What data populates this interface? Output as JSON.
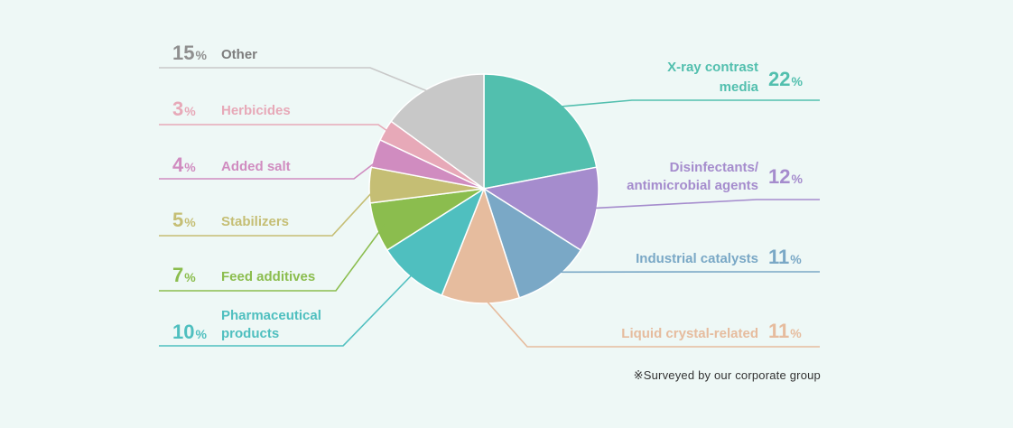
{
  "chart_data": {
    "type": "pie",
    "series": [
      {
        "name": "X-ray contrast media",
        "label_lines": [
          "X-ray contrast",
          "media"
        ],
        "value": 22,
        "color": "#52bfae",
        "side": "right"
      },
      {
        "name": "Disinfectants/ antimicrobial agents",
        "label_lines": [
          "Disinfectants/",
          "antimicrobial agents"
        ],
        "value": 12,
        "color": "#a58ccd",
        "side": "right"
      },
      {
        "name": "Industrial catalysts",
        "label_lines": [
          "Industrial catalysts"
        ],
        "value": 11,
        "color": "#7aa8c6",
        "side": "right"
      },
      {
        "name": "Liquid crystal-related",
        "label_lines": [
          "Liquid crystal-related"
        ],
        "value": 11,
        "color": "#e6bc9e",
        "side": "right"
      },
      {
        "name": "Pharmaceutical products",
        "label_lines": [
          "Pharmaceutical",
          "products"
        ],
        "value": 10,
        "color": "#4fbfbf",
        "side": "left"
      },
      {
        "name": "Feed additives",
        "label_lines": [
          "Feed additives"
        ],
        "value": 7,
        "color": "#8bbd4e",
        "side": "left"
      },
      {
        "name": "Stabilizers",
        "label_lines": [
          "Stabilizers"
        ],
        "value": 5,
        "color": "#c5be74",
        "side": "left"
      },
      {
        "name": "Added salt",
        "label_lines": [
          "Added salt"
        ],
        "value": 4,
        "color": "#d08cc0",
        "side": "left"
      },
      {
        "name": "Herbicides",
        "label_lines": [
          "Herbicides"
        ],
        "value": 3,
        "color": "#e7a9b8",
        "side": "left"
      },
      {
        "name": "Other",
        "label_lines": [
          "Other"
        ],
        "value": 15,
        "color": "#c8c8c8",
        "side": "left",
        "number_color": "#8f8f8f",
        "text_color": "#7d7d7d"
      }
    ],
    "unit": "%"
  },
  "footnote": "※Surveyed by our corporate group"
}
